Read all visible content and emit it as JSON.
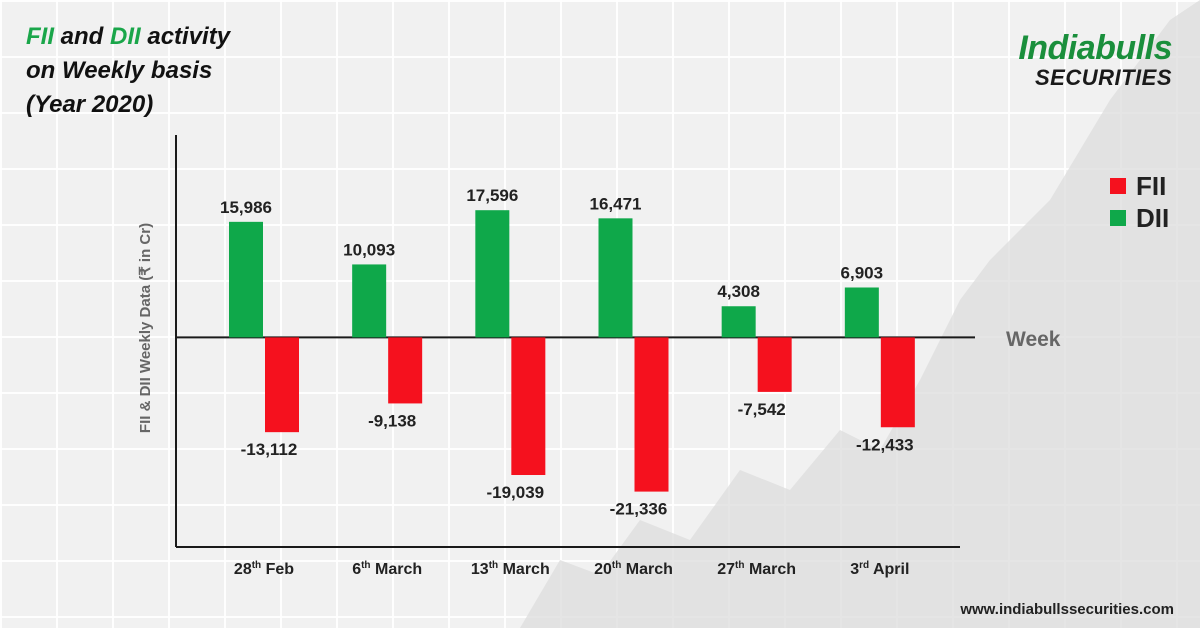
{
  "title": {
    "fii": "FII",
    "and": " and ",
    "dii": "DII",
    "rest": " activity",
    "line2": "on Weekly basis",
    "line3": "(Year 2020)"
  },
  "logo": {
    "line1": "Indiabulls",
    "line2": "SECURITIES"
  },
  "footer": "www.indiabullssecurities.com",
  "colors": {
    "fii": "#f5111e",
    "dii": "#0fa84a",
    "title_accent": "#1aa64a"
  },
  "legend": [
    {
      "label": "FII",
      "color": "#f5111e"
    },
    {
      "label": "DII",
      "color": "#0fa84a"
    }
  ],
  "chart_data": {
    "type": "bar",
    "ylabel": "FII & DII Weekly Data (₹ in Cr)",
    "xlabel": "Week",
    "categories": [
      {
        "day": "28",
        "sup": "th",
        "rest": " Feb"
      },
      {
        "day": "6",
        "sup": "th",
        "rest": " March"
      },
      {
        "day": "13",
        "sup": "th",
        "rest": " March"
      },
      {
        "day": "20",
        "sup": "th",
        "rest": " March"
      },
      {
        "day": "27",
        "sup": "th",
        "rest": " March"
      },
      {
        "day": "3",
        "sup": "rd",
        "rest": " April"
      }
    ],
    "series": [
      {
        "name": "DII",
        "color": "#0fa84a",
        "values": [
          15986,
          10093,
          17596,
          16471,
          4308,
          6903
        ],
        "labels": [
          "15,986",
          "10,093",
          "17,596",
          "16,471",
          "4,308",
          "6,903"
        ]
      },
      {
        "name": "FII",
        "color": "#f5111e",
        "values": [
          -13112,
          -9138,
          -19039,
          -21336,
          -7542,
          -12433
        ],
        "labels": [
          "-13,112",
          "-9,138",
          "-19,039",
          "-21,336",
          "-7,542",
          "-12,433"
        ]
      }
    ],
    "ylim": [
      -29000,
      28000
    ],
    "legend_position": "right",
    "grid": false
  }
}
